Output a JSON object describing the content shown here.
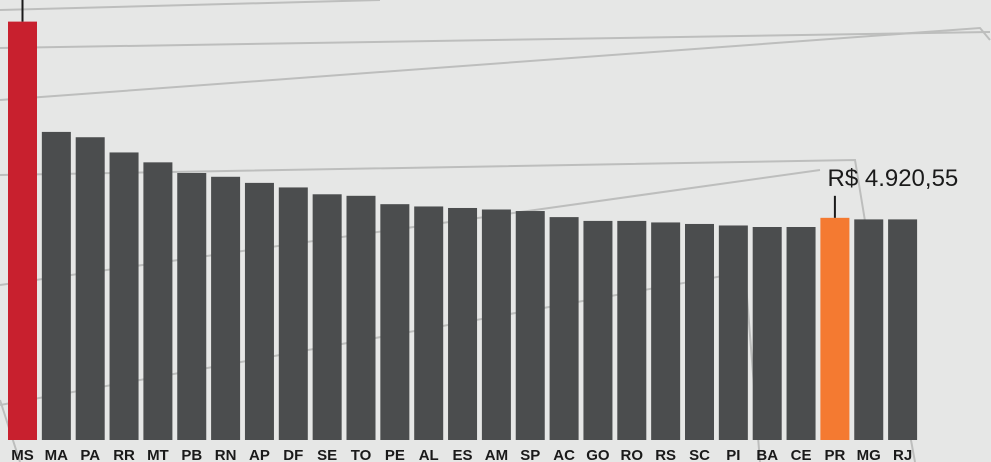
{
  "chart_data": {
    "type": "bar",
    "categories": [
      "MS",
      "MA",
      "PA",
      "RR",
      "MT",
      "PB",
      "RN",
      "AP",
      "DF",
      "SE",
      "TO",
      "PE",
      "AL",
      "ES",
      "AM",
      "SP",
      "AC",
      "GO",
      "RO",
      "RS",
      "SC",
      "PI",
      "BA",
      "CE",
      "PR",
      "MG",
      "RJ"
    ],
    "values": [
      7500,
      6050,
      5980,
      5780,
      5650,
      5510,
      5460,
      5380,
      5320,
      5230,
      5210,
      5100,
      5070,
      5050,
      5030,
      5010,
      4930,
      4880,
      4880,
      4860,
      4840,
      4820,
      4800,
      4800,
      4920.55,
      4900,
      4900
    ],
    "title": "",
    "xlabel": "",
    "ylabel": "",
    "ylim": [
      2000,
      7600
    ],
    "grid": false,
    "legend": "none",
    "colors": {
      "default": "#4b4d4e",
      "highlight_max": "#c8202e",
      "highlight_PR": "#f47a31"
    },
    "annotations": [
      {
        "category": "PR",
        "text": "R$ 4.920,55"
      }
    ]
  }
}
